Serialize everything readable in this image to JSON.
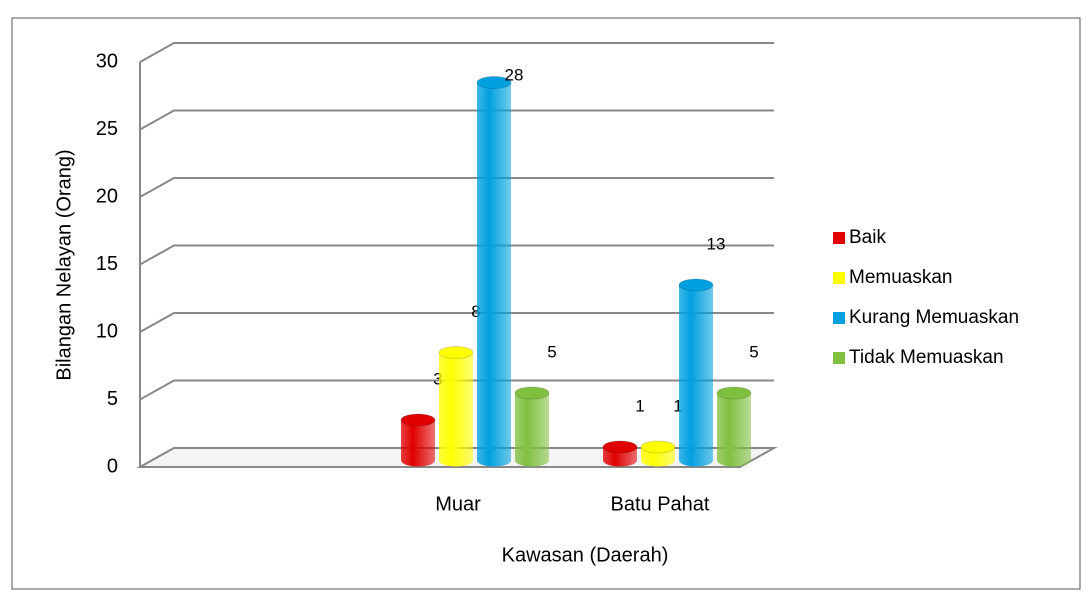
{
  "chart_data": {
    "type": "bar3d",
    "y_label": "Bilangan Nelayan (Orang)",
    "x_label": "Kawasan (Daerah)",
    "categories": [
      null,
      "Muar",
      "Batu Pahat"
    ],
    "series": [
      {
        "name": "Baik",
        "color": "#e00000",
        "values": [
          null,
          3,
          1
        ]
      },
      {
        "name": "Memuaskan",
        "color": "#ffff00",
        "values": [
          null,
          8,
          1
        ]
      },
      {
        "name": "Kurang Memuaskan",
        "color": "#00a0e0",
        "values": [
          null,
          28,
          13
        ]
      },
      {
        "name": "Tidak Memuaskan",
        "color": "#80c040",
        "values": [
          null,
          5,
          5
        ]
      }
    ],
    "ylim": [
      0,
      30
    ],
    "yticks": [
      0,
      5,
      10,
      15,
      20,
      25,
      30
    ],
    "grid": true,
    "legend": "right"
  }
}
